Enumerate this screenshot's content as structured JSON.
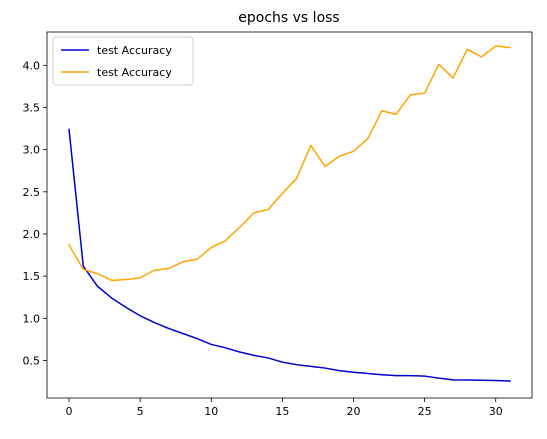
{
  "chart_data": {
    "type": "line",
    "title": "epochs vs loss",
    "xlabel": "",
    "ylabel": "",
    "xlim": [
      -1.55,
      32.55
    ],
    "ylim": [
      0.055,
      4.395
    ],
    "x_ticks": [
      0,
      5,
      10,
      15,
      20,
      25,
      30
    ],
    "y_ticks": [
      0.5,
      1.0,
      1.5,
      2.0,
      2.5,
      3.0,
      3.5,
      4.0
    ],
    "x_tick_labels": [
      "0",
      "5",
      "10",
      "15",
      "20",
      "25",
      "30"
    ],
    "y_tick_labels": [
      "0.5",
      "1.0",
      "1.5",
      "2.0",
      "2.5",
      "3.0",
      "3.5",
      "4.0"
    ],
    "grid": false,
    "legend_position": "top-left",
    "series": [
      {
        "name": "test Accuracy",
        "color": "#0000cd",
        "x": [
          0,
          1,
          2,
          3,
          4,
          5,
          6,
          7,
          8,
          9,
          10,
          11,
          12,
          13,
          14,
          15,
          16,
          17,
          18,
          19,
          20,
          21,
          22,
          23,
          24,
          25,
          26,
          27,
          28,
          29,
          30,
          31
        ],
        "values": [
          3.24,
          1.62,
          1.38,
          1.24,
          1.13,
          1.03,
          0.95,
          0.88,
          0.82,
          0.76,
          0.69,
          0.65,
          0.6,
          0.56,
          0.53,
          0.48,
          0.45,
          0.43,
          0.41,
          0.38,
          0.36,
          0.345,
          0.33,
          0.32,
          0.32,
          0.315,
          0.29,
          0.27,
          0.268,
          0.266,
          0.262,
          0.256
        ]
      },
      {
        "name": "test Accuracy",
        "color": "#ffa500",
        "x": [
          0,
          1,
          2,
          3,
          4,
          5,
          6,
          7,
          8,
          9,
          10,
          11,
          12,
          13,
          14,
          15,
          16,
          17,
          18,
          19,
          20,
          21,
          22,
          23,
          24,
          25,
          26,
          27,
          28,
          29,
          30,
          31
        ],
        "values": [
          1.87,
          1.58,
          1.53,
          1.45,
          1.46,
          1.48,
          1.57,
          1.59,
          1.67,
          1.7,
          1.84,
          1.92,
          2.08,
          2.25,
          2.29,
          2.48,
          2.66,
          3.05,
          2.8,
          2.92,
          2.98,
          3.13,
          3.46,
          3.42,
          3.65,
          3.67,
          4.01,
          3.85,
          4.19,
          4.1,
          4.23,
          4.21
        ]
      }
    ]
  }
}
